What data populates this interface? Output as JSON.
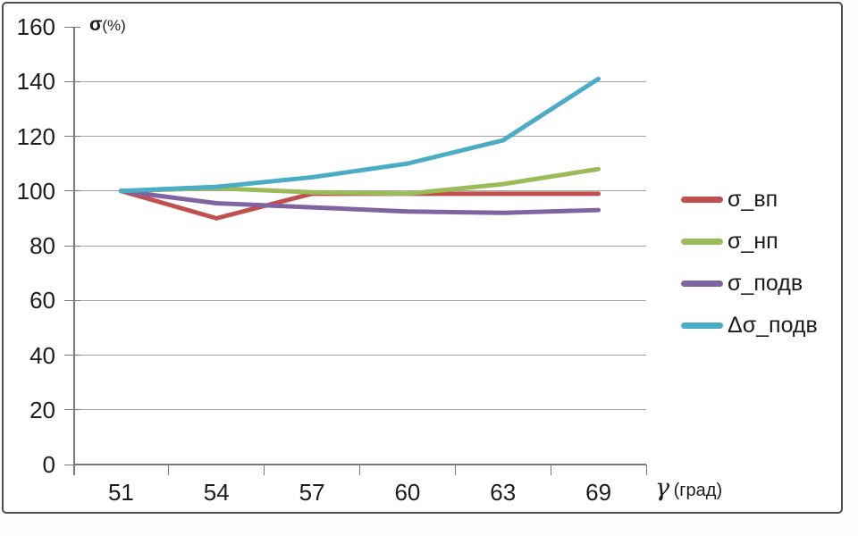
{
  "figure": {
    "y_axis_title": {
      "symbol": "σ",
      "unit": "(%)"
    },
    "x_axis_title": {
      "symbol": "γ",
      "unit": "(град)"
    }
  },
  "chart_data": {
    "type": "line",
    "title": "",
    "xlabel": "γ (град)",
    "ylabel": "σ(%)",
    "categories": [
      "51",
      "54",
      "57",
      "60",
      "63",
      "69"
    ],
    "x": [
      51,
      54,
      57,
      60,
      63,
      69
    ],
    "series": [
      {
        "name": "σ_вп",
        "color": "#C0504D",
        "values": [
          100,
          90,
          99,
          99,
          99,
          99
        ]
      },
      {
        "name": "σ_нп",
        "color": "#9BBB59",
        "values": [
          100,
          101,
          99.5,
          99,
          102.5,
          108
        ]
      },
      {
        "name": "σ_подв",
        "color": "#8064A2",
        "values": [
          100,
          95.5,
          94,
          92.5,
          92,
          93
        ]
      },
      {
        "name": "Δσ_подв",
        "color": "#4BACC6",
        "values": [
          100,
          101.5,
          105,
          110,
          118.5,
          141
        ]
      }
    ],
    "ylim": [
      0,
      160
    ],
    "y_ticks": [
      0,
      20,
      40,
      60,
      80,
      100,
      120,
      140,
      160
    ],
    "grid": true,
    "legend_position": "right"
  },
  "colors": {
    "grid": "#A3A3A3",
    "axis": "#7A7A7A",
    "text": "#1C1C1C",
    "frame": "#4D4D4D"
  }
}
